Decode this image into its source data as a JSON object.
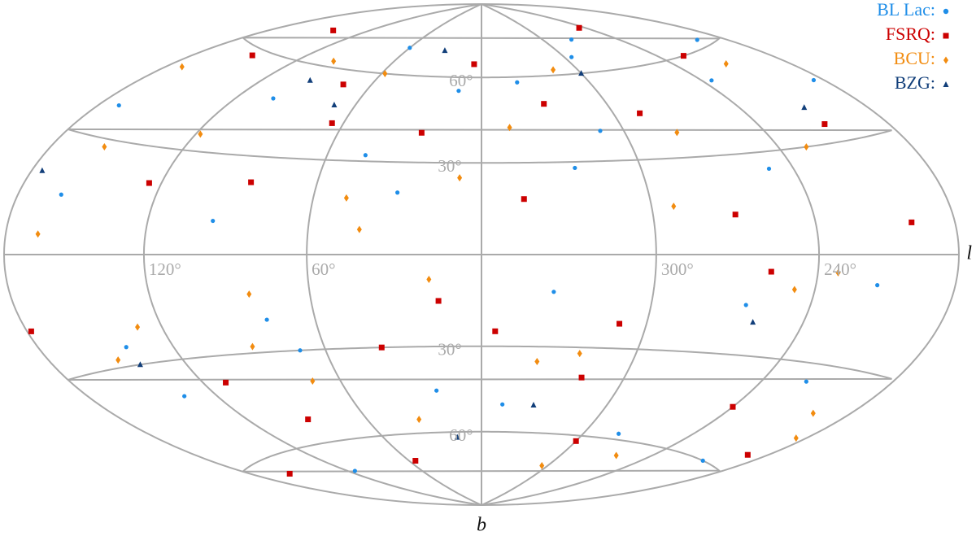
{
  "chart_data": {
    "type": "scatter",
    "projection": "hammer",
    "x_label": "l",
    "y_label": "b",
    "xticks": [
      {
        "value": 120,
        "label": "120°"
      },
      {
        "value": 60,
        "label": "60°"
      },
      {
        "value": 300,
        "label": "300°"
      },
      {
        "value": 240,
        "label": "240°"
      }
    ],
    "yticks": [
      {
        "value": 60,
        "label": "60°"
      },
      {
        "value": 30,
        "label": "30°"
      },
      {
        "value": -30,
        "label": "30°"
      },
      {
        "value": -60,
        "label": "60°"
      }
    ],
    "series": [
      {
        "name": "BL Lac:",
        "color": "#1f8ee8",
        "marker": "circle",
        "x": [
          12,
          45,
          78,
          102,
          135,
          160,
          195,
          220,
          250,
          280,
          310,
          335,
          20,
          60,
          95,
          140,
          170,
          205,
          235,
          265,
          295,
          325,
          350,
          30,
          115,
          185,
          215,
          275,
          340,
          70
        ],
        "values": [
          55,
          32,
          -20,
          48,
          -40,
          15,
          62,
          -35,
          25,
          -58,
          40,
          -12,
          -45,
          70,
          10,
          -25,
          38,
          -60,
          52,
          -15,
          66,
          28,
          -50,
          20,
          -70,
          45,
          -8,
          72,
          58,
          -30
        ]
      },
      {
        "name": "FSRQ:",
        "color": "#cc0000",
        "marker": "square",
        "x": [
          5,
          38,
          65,
          90,
          125,
          150,
          178,
          210,
          240,
          270,
          300,
          330,
          355,
          25,
          55,
          85,
          110,
          145,
          190,
          225,
          258,
          288,
          318,
          345,
          15,
          75,
          160,
          200,
          245,
          310
        ],
        "values": [
          65,
          -30,
          42,
          -52,
          20,
          58,
          -18,
          35,
          -45,
          12,
          -62,
          50,
          -25,
          40,
          -70,
          22,
          -38,
          70,
          -55,
          60,
          -5,
          45,
          -40,
          18,
          -15,
          55,
          -65,
          8,
          75,
          -22
        ]
      },
      {
        "name": "BCU:",
        "color": "#f28c10",
        "marker": "diamond",
        "x": [
          8,
          33,
          58,
          82,
          118,
          148,
          172,
          198,
          228,
          262,
          292,
          322,
          348,
          18,
          48,
          72,
          98,
          130,
          165,
          185,
          212,
          248,
          278,
          305,
          338,
          42,
          88,
          155,
          232,
          315
        ],
        "values": [
          25,
          -55,
          60,
          -12,
          35,
          -28,
          50,
          -42,
          30,
          -65,
          15,
          -32,
          42,
          -8,
          18,
          -40,
          62,
          -20,
          5,
          -48,
          55,
          -10,
          38,
          -72,
          -35,
          8,
          -28,
          28,
          -5,
          62
        ]
      },
      {
        "name": "BZG:",
        "color": "#123f7a",
        "marker": "triangle",
        "x": [
          30,
          95,
          140,
          210,
          260,
          300,
          335,
          15,
          175,
          70
        ],
        "values": [
          70,
          55,
          -30,
          40,
          -20,
          60,
          -50,
          -62,
          20,
          48
        ]
      }
    ]
  }
}
